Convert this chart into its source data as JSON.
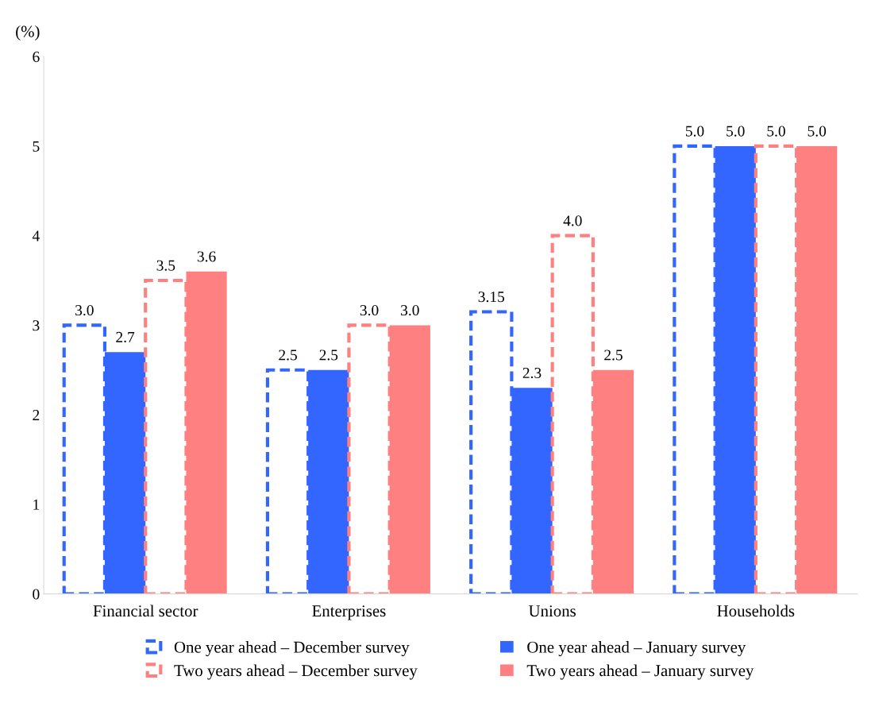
{
  "chart_data": {
    "type": "bar",
    "ylabel": "(%)",
    "categories": [
      "Financial sector",
      "Enterprises",
      "Unions",
      "Households"
    ],
    "series": [
      {
        "name": "One year ahead – December survey",
        "color": "#3366ff",
        "line_style": "dashed",
        "values": [
          3.0,
          2.5,
          3.15,
          5.0
        ],
        "value_labels": [
          "3.0",
          "2.5",
          "3.15",
          "5.0"
        ]
      },
      {
        "name": "One year ahead – January survey",
        "color": "#3366ff",
        "values": [
          2.7,
          2.5,
          2.3,
          5.0
        ],
        "value_labels": [
          "2.7",
          "2.5",
          "2.3",
          "5.0"
        ]
      },
      {
        "name": "Two years ahead – December survey",
        "color": "#ff8080",
        "line_style": "dashed",
        "values": [
          3.5,
          3.0,
          4.0,
          5.0
        ],
        "value_labels": [
          "3.5",
          "3.0",
          "4.0",
          "5.0"
        ]
      },
      {
        "name": "Two years ahead – January survey",
        "color": "#ff8080",
        "values": [
          3.6,
          3.0,
          2.5,
          5.0
        ],
        "value_labels": [
          "3.6",
          "3.0",
          "2.5",
          "5.0"
        ]
      }
    ],
    "ylim": [
      0,
      6
    ],
    "yticks": [
      0,
      1,
      2,
      3,
      4,
      5,
      6
    ],
    "grid": false,
    "legend": "bottom"
  }
}
